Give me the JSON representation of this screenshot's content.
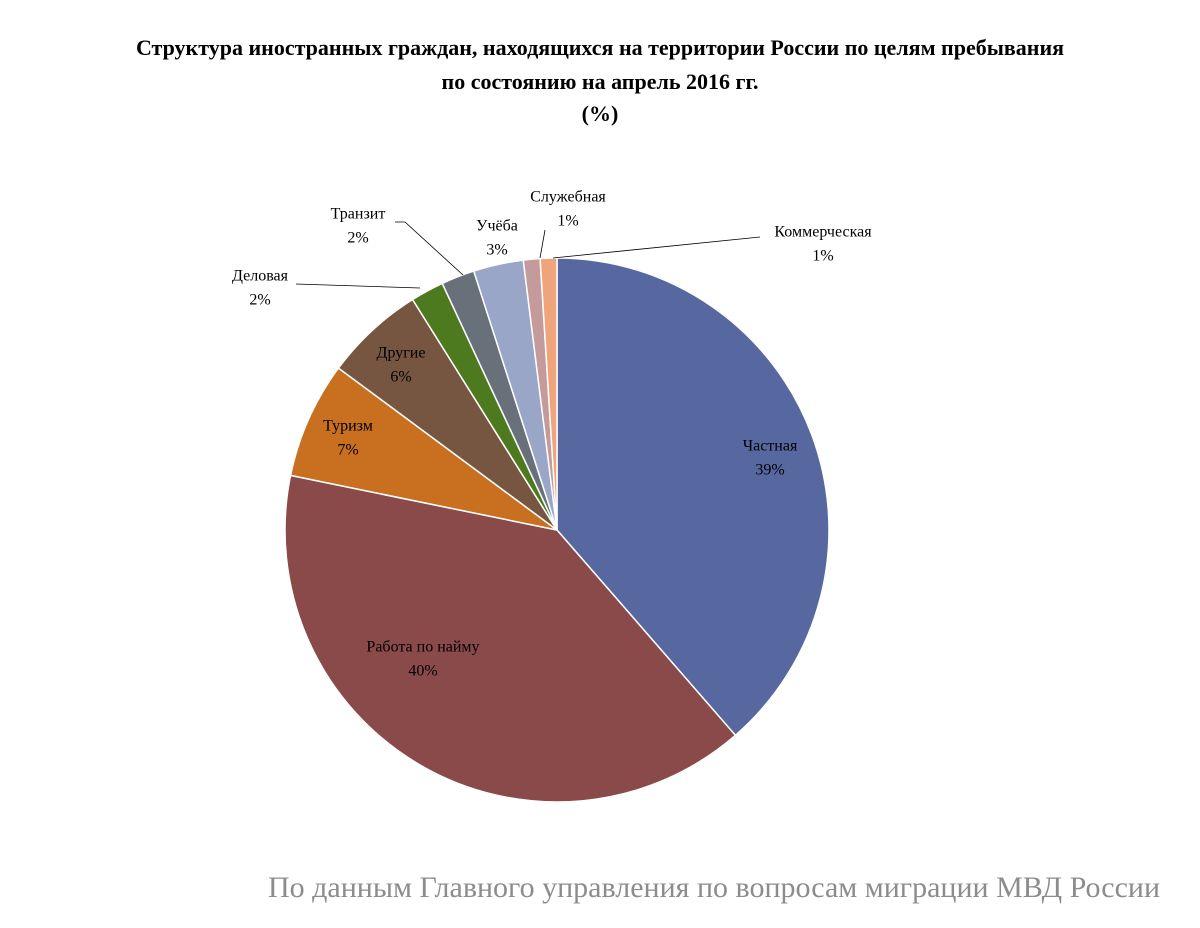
{
  "chart_data": {
    "type": "pie",
    "title_lines": [
      "Структура иностранных граждан, находящихся на территории России по целям пребывания",
      "по состоянию на апрель 2016 гг.",
      "(%)"
    ],
    "categories": [
      "Частная",
      "Работа по найму",
      "Туризм",
      "Другие",
      "Деловая",
      "Транзит",
      "Учёба",
      "Служебная",
      "Коммерческая"
    ],
    "values": [
      39,
      40,
      7,
      6,
      2,
      2,
      3,
      1,
      1
    ],
    "value_labels": [
      "39%",
      "40%",
      "7%",
      "6%",
      "2%",
      "2%",
      "3%",
      "1%",
      "1%"
    ],
    "colors": [
      "#56689f",
      "#8b4a4a",
      "#c96f20",
      "#765640",
      "#4e7a1f",
      "#68717a",
      "#9aa6c8",
      "#c49a9a",
      "#f0a47c"
    ],
    "source": "По данным Главного управления по вопросам миграции МВД России"
  }
}
